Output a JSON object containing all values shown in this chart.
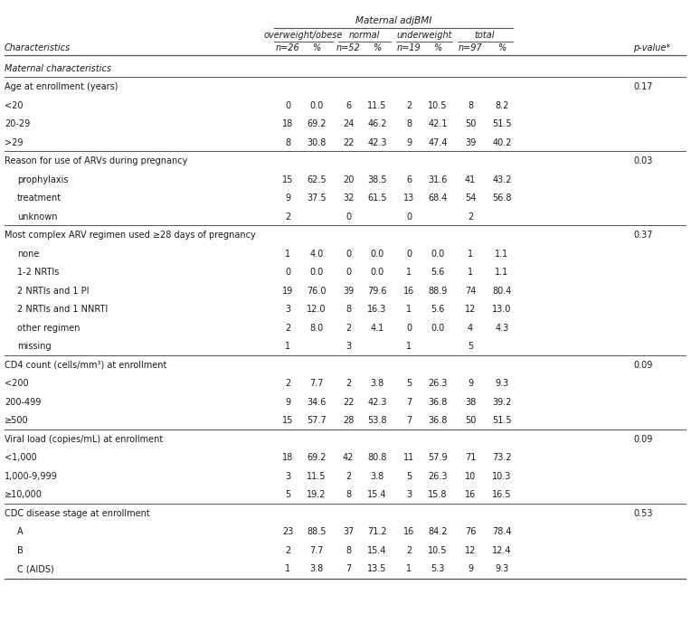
{
  "title": "Maternal adjBMI",
  "rows": [
    {
      "label": "Maternal characteristics",
      "type": "section",
      "values": [
        "",
        "",
        "",
        "",
        "",
        "",
        "",
        "",
        ""
      ]
    },
    {
      "label": "Age at enrollment (years)",
      "type": "header",
      "values": [
        "",
        "",
        "",
        "",
        "",
        "",
        "",
        "",
        "0.17"
      ]
    },
    {
      "label": "<20",
      "type": "data",
      "values": [
        "0",
        "0.0",
        "6",
        "11.5",
        "2",
        "10.5",
        "8",
        "8.2",
        ""
      ]
    },
    {
      "label": "20-29",
      "type": "data",
      "values": [
        "18",
        "69.2",
        "24",
        "46.2",
        "8",
        "42.1",
        "50",
        "51.5",
        ""
      ]
    },
    {
      "label": ">29",
      "type": "data",
      "values": [
        "8",
        "30.8",
        "22",
        "42.3",
        "9",
        "47.4",
        "39",
        "40.2",
        ""
      ]
    },
    {
      "label": "Reason for use of ARVs during pregnancy",
      "type": "header",
      "values": [
        "",
        "",
        "",
        "",
        "",
        "",
        "",
        "",
        "0.03"
      ]
    },
    {
      "label": "prophylaxis",
      "type": "data",
      "indent": true,
      "values": [
        "15",
        "62.5",
        "20",
        "38.5",
        "6",
        "31.6",
        "41",
        "43.2",
        ""
      ]
    },
    {
      "label": "treatment",
      "type": "data",
      "indent": true,
      "values": [
        "9",
        "37.5",
        "32",
        "61.5",
        "13",
        "68.4",
        "54",
        "56.8",
        ""
      ]
    },
    {
      "label": "unknown",
      "type": "data_nopc",
      "indent": true,
      "values": [
        "2",
        "",
        "0",
        "",
        "0",
        "",
        "2",
        "",
        ""
      ]
    },
    {
      "label": "Most complex ARV regimen used ≥28 days of pregnancy",
      "type": "header",
      "values": [
        "",
        "",
        "",
        "",
        "",
        "",
        "",
        "",
        "0.37"
      ]
    },
    {
      "label": "none",
      "type": "data",
      "indent": true,
      "values": [
        "1",
        "4.0",
        "0",
        "0.0",
        "0",
        "0.0",
        "1",
        "1.1",
        ""
      ]
    },
    {
      "label": "1-2 NRTIs",
      "type": "data",
      "indent": true,
      "values": [
        "0",
        "0.0",
        "0",
        "0.0",
        "1",
        "5.6",
        "1",
        "1.1",
        ""
      ]
    },
    {
      "label": "2 NRTIs and 1 PI",
      "type": "data",
      "indent": true,
      "values": [
        "19",
        "76.0",
        "39",
        "79.6",
        "16",
        "88.9",
        "74",
        "80.4",
        ""
      ]
    },
    {
      "label": "2 NRTIs and 1 NNRTI",
      "type": "data",
      "indent": true,
      "values": [
        "3",
        "12.0",
        "8",
        "16.3",
        "1",
        "5.6",
        "12",
        "13.0",
        ""
      ]
    },
    {
      "label": "other regimen",
      "type": "data",
      "indent": true,
      "values": [
        "2",
        "8.0",
        "2",
        "4.1",
        "0",
        "0.0",
        "4",
        "4.3",
        ""
      ]
    },
    {
      "label": "missing",
      "type": "data_nopc",
      "indent": true,
      "values": [
        "1",
        "",
        "3",
        "",
        "1",
        "",
        "5",
        "",
        ""
      ]
    },
    {
      "label": "CD4 count (cells/mm³) at enrollment",
      "type": "header",
      "values": [
        "",
        "",
        "",
        "",
        "",
        "",
        "",
        "",
        "0.09"
      ]
    },
    {
      "label": "<200",
      "type": "data",
      "values": [
        "2",
        "7.7",
        "2",
        "3.8",
        "5",
        "26.3",
        "9",
        "9.3",
        ""
      ]
    },
    {
      "label": "200-499",
      "type": "data",
      "values": [
        "9",
        "34.6",
        "22",
        "42.3",
        "7",
        "36.8",
        "38",
        "39.2",
        ""
      ]
    },
    {
      "label": "≥500",
      "type": "data",
      "values": [
        "15",
        "57.7",
        "28",
        "53.8",
        "7",
        "36.8",
        "50",
        "51.5",
        ""
      ]
    },
    {
      "label": "Viral load (copies/mL) at enrollment",
      "type": "header",
      "values": [
        "",
        "",
        "",
        "",
        "",
        "",
        "",
        "",
        "0.09"
      ]
    },
    {
      "label": "<1,000",
      "type": "data",
      "values": [
        "18",
        "69.2",
        "42",
        "80.8",
        "11",
        "57.9",
        "71",
        "73.2",
        ""
      ]
    },
    {
      "label": "1,000-9,999",
      "type": "data",
      "values": [
        "3",
        "11.5",
        "2",
        "3.8",
        "5",
        "26.3",
        "10",
        "10.3",
        ""
      ]
    },
    {
      "label": "≥10,000",
      "type": "data",
      "values": [
        "5",
        "19.2",
        "8",
        "15.4",
        "3",
        "15.8",
        "16",
        "16.5",
        ""
      ]
    },
    {
      "label": "CDC disease stage at enrollment",
      "type": "header",
      "values": [
        "",
        "",
        "",
        "",
        "",
        "",
        "",
        "",
        "0.53"
      ]
    },
    {
      "label": "A",
      "type": "data",
      "indent": true,
      "values": [
        "23",
        "88.5",
        "37",
        "71.2",
        "16",
        "84.2",
        "76",
        "78.4",
        ""
      ]
    },
    {
      "label": "B",
      "type": "data",
      "indent": true,
      "values": [
        "2",
        "7.7",
        "8",
        "15.4",
        "2",
        "10.5",
        "12",
        "12.4",
        ""
      ]
    },
    {
      "label": "C (AIDS)",
      "type": "data",
      "indent": true,
      "values": [
        "1",
        "3.8",
        "7",
        "13.5",
        "1",
        "5.3",
        "9",
        "9.3",
        ""
      ]
    }
  ],
  "col_header": "Characteristics",
  "pval_header": "p-value*",
  "group_labels": [
    "overweight/obese",
    "normal",
    "underweight",
    "total"
  ],
  "sub_labels": [
    "n=26",
    "%",
    "n=52",
    "%",
    "n=19",
    "%",
    "n=97",
    "%"
  ],
  "bg_color": "#ffffff",
  "text_color": "#1a1a1a",
  "line_color": "#555555",
  "font_size": 7.0
}
